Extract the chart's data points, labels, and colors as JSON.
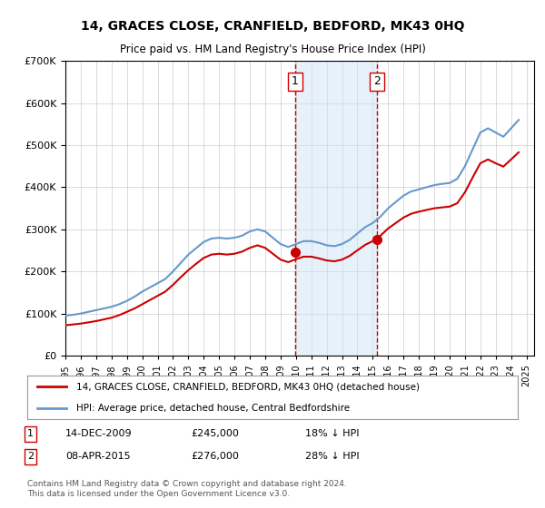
{
  "title": "14, GRACES CLOSE, CRANFIELD, BEDFORD, MK43 0HQ",
  "subtitle": "Price paid vs. HM Land Registry's House Price Index (HPI)",
  "ylabel": "",
  "xlabel": "",
  "legend_line1": "14, GRACES CLOSE, CRANFIELD, BEDFORD, MK43 0HQ (detached house)",
  "legend_line2": "HPI: Average price, detached house, Central Bedfordshire",
  "footnote": "Contains HM Land Registry data © Crown copyright and database right 2024.\nThis data is licensed under the Open Government Licence v3.0.",
  "sale1_label": "1",
  "sale1_date": "14-DEC-2009",
  "sale1_price": "£245,000",
  "sale1_pct": "18% ↓ HPI",
  "sale2_label": "2",
  "sale2_date": "08-APR-2015",
  "sale2_price": "£276,000",
  "sale2_pct": "28% ↓ HPI",
  "line_color_red": "#cc0000",
  "line_color_blue": "#6699cc",
  "marker_color_red": "#cc0000",
  "vline_color": "#cc0000",
  "shade_color": "#d0e4f7",
  "background_color": "#ffffff",
  "grid_color": "#cccccc",
  "ylim": [
    0,
    700000
  ],
  "xlim_start": 1995.0,
  "xlim_end": 2025.5,
  "sale1_x": 2009.96,
  "sale2_x": 2015.27,
  "hpi_years": [
    1995,
    1995.5,
    1996,
    1996.5,
    1997,
    1997.5,
    1998,
    1998.5,
    1999,
    1999.5,
    2000,
    2000.5,
    2001,
    2001.5,
    2002,
    2002.5,
    2003,
    2003.5,
    2004,
    2004.5,
    2005,
    2005.5,
    2006,
    2006.5,
    2007,
    2007.5,
    2008,
    2008.5,
    2009,
    2009.5,
    2010,
    2010.5,
    2011,
    2011.5,
    2012,
    2012.5,
    2013,
    2013.5,
    2014,
    2014.5,
    2015,
    2015.5,
    2016,
    2016.5,
    2017,
    2017.5,
    2018,
    2018.5,
    2019,
    2019.5,
    2020,
    2020.5,
    2021,
    2021.5,
    2022,
    2022.5,
    2023,
    2023.5,
    2024,
    2024.5
  ],
  "hpi_values": [
    95000,
    97000,
    100000,
    104000,
    108000,
    112000,
    116000,
    122000,
    130000,
    140000,
    152000,
    162000,
    172000,
    182000,
    200000,
    220000,
    240000,
    255000,
    270000,
    278000,
    280000,
    278000,
    280000,
    285000,
    295000,
    300000,
    295000,
    280000,
    265000,
    258000,
    265000,
    272000,
    272000,
    268000,
    262000,
    260000,
    265000,
    275000,
    290000,
    305000,
    315000,
    330000,
    350000,
    365000,
    380000,
    390000,
    395000,
    400000,
    405000,
    408000,
    410000,
    420000,
    450000,
    490000,
    530000,
    540000,
    530000,
    520000,
    540000,
    560000
  ],
  "price_years": [
    1995,
    1995.5,
    1996,
    1996.5,
    1997,
    1997.5,
    1998,
    1998.5,
    1999,
    1999.5,
    2000,
    2000.5,
    2001,
    2001.5,
    2002,
    2002.5,
    2003,
    2003.5,
    2004,
    2004.5,
    2005,
    2005.5,
    2006,
    2006.5,
    2007,
    2007.5,
    2008,
    2008.5,
    2009,
    2009.5,
    2010,
    2010.5,
    2011,
    2011.5,
    2012,
    2012.5,
    2013,
    2013.5,
    2014,
    2014.5,
    2015,
    2015.5,
    2016,
    2016.5,
    2017,
    2017.5,
    2018,
    2018.5,
    2019,
    2019.5,
    2020,
    2020.5,
    2021,
    2021.5,
    2022,
    2022.5,
    2023,
    2023.5,
    2024,
    2024.5
  ],
  "price_values": [
    72000,
    74000,
    76000,
    79000,
    82000,
    86000,
    90000,
    96000,
    104000,
    112000,
    122000,
    132000,
    142000,
    152000,
    168000,
    186000,
    203000,
    218000,
    232000,
    240000,
    242000,
    240000,
    242000,
    247000,
    256000,
    262000,
    256000,
    242000,
    228000,
    222000,
    229000,
    235000,
    235000,
    231000,
    226000,
    224000,
    228000,
    237000,
    250000,
    263000,
    272000,
    285000,
    302000,
    315000,
    328000,
    337000,
    342000,
    346000,
    350000,
    352000,
    354000,
    362000,
    388000,
    423000,
    457000,
    466000,
    457000,
    449000,
    466000,
    483000
  ]
}
